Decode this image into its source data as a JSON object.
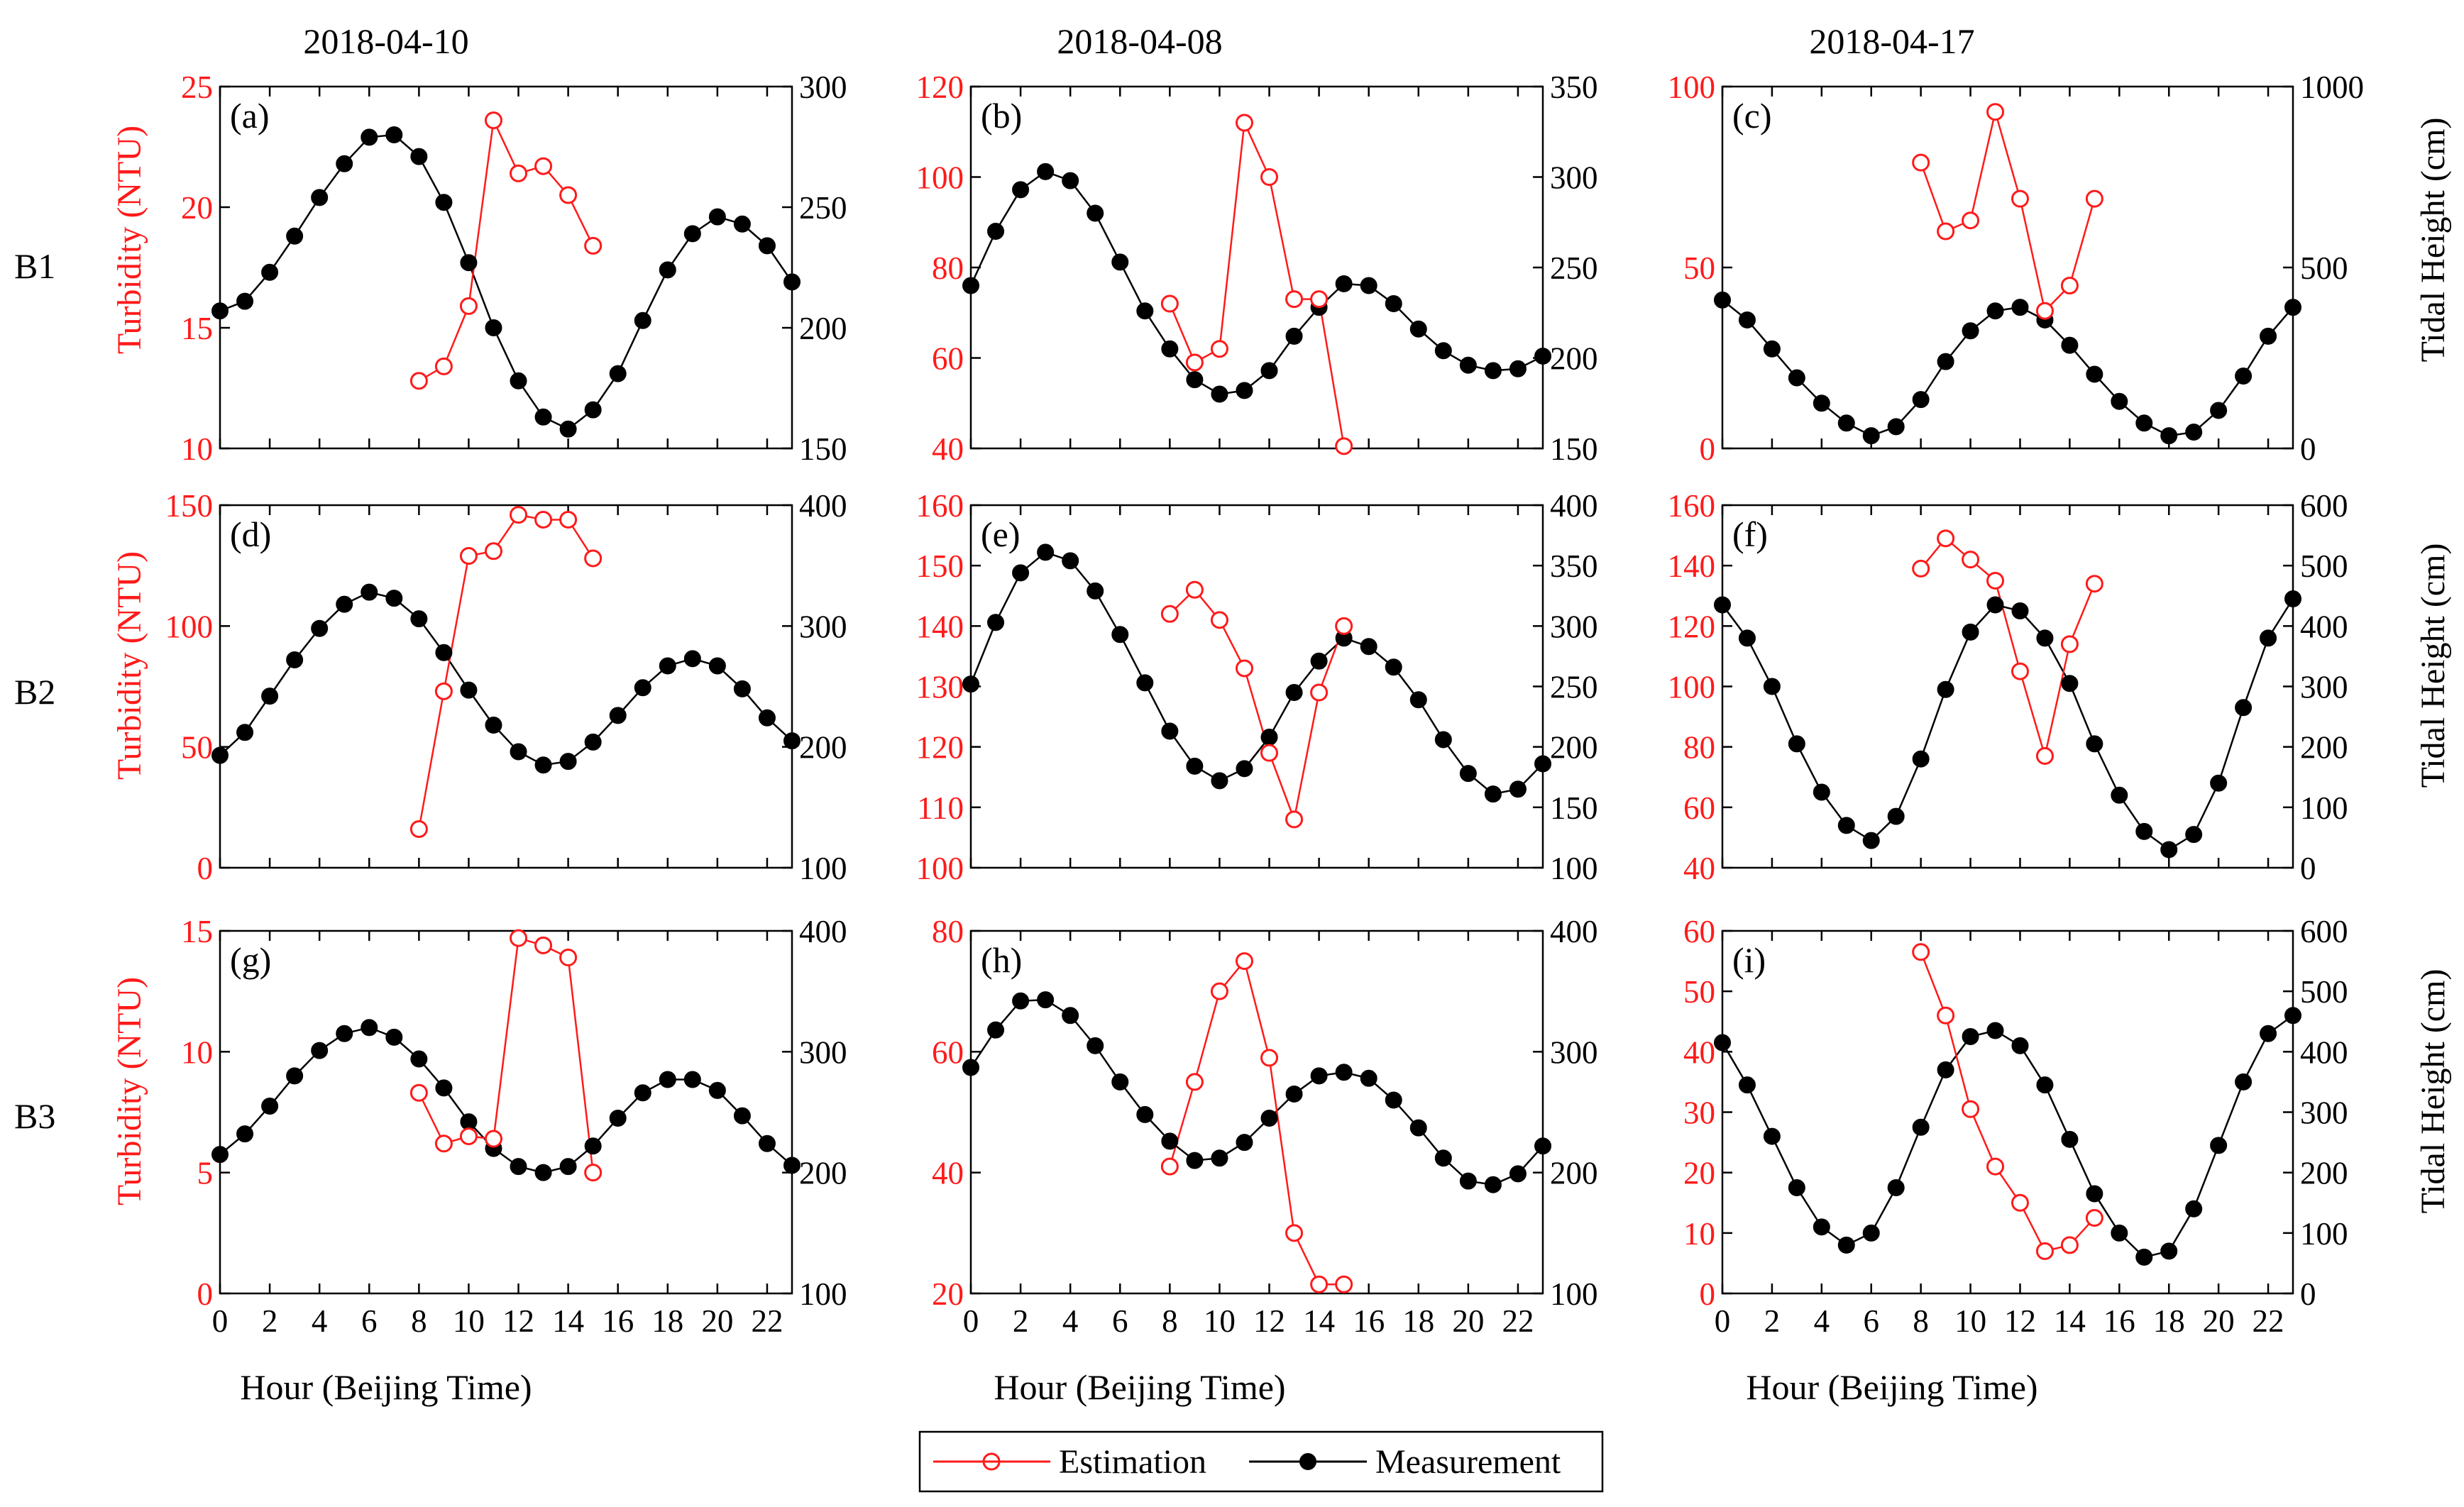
{
  "figure": {
    "x_label": "Hour (Beijing Time)",
    "left_axis_label": "Turbidity (NTU)",
    "right_axis_label": "Tidal Height (cm)",
    "column_titles": [
      "2018-04-10",
      "2018-04-08",
      "2018-04-17"
    ],
    "row_labels": [
      "B1",
      "B2",
      "B3"
    ],
    "legend": {
      "estimation": "Estimation",
      "measurement": "Measurement"
    },
    "colors": {
      "estimation": "#ff1a1a",
      "measurement": "#000000"
    }
  },
  "chart_data": [
    {
      "type": "line",
      "panel": "(a)",
      "row": 0,
      "col": 0,
      "title": "2018-04-10",
      "x_range": [
        0,
        23
      ],
      "x_ticks": [
        0,
        2,
        4,
        6,
        8,
        10,
        12,
        14,
        16,
        18,
        20,
        22
      ],
      "y_left": {
        "label": "Turbidity (NTU)",
        "range": [
          10,
          25
        ],
        "ticks": [
          10,
          15,
          20,
          25
        ]
      },
      "y_right": {
        "label": "Tidal Height (cm)",
        "range": [
          150,
          300
        ],
        "ticks": [
          150,
          200,
          250,
          300
        ]
      },
      "series": [
        {
          "name": "Estimation",
          "axis": "left",
          "x": [
            8,
            9,
            10,
            11,
            12,
            13,
            14,
            15
          ],
          "y": [
            12.8,
            13.4,
            15.9,
            23.6,
            21.4,
            21.7,
            20.5,
            18.4
          ]
        },
        {
          "name": "Measurement",
          "axis": "right",
          "x": [
            0,
            1,
            2,
            3,
            4,
            5,
            6,
            7,
            8,
            9,
            10,
            11,
            12,
            13,
            14,
            15,
            16,
            17,
            18,
            19,
            20,
            21,
            22,
            23
          ],
          "y": [
            207,
            211,
            223,
            238,
            254,
            268,
            279,
            280,
            271,
            252,
            227,
            200,
            178,
            163,
            158,
            166,
            181,
            203,
            224,
            239,
            246,
            243,
            234,
            219
          ]
        }
      ]
    },
    {
      "type": "line",
      "panel": "(b)",
      "row": 0,
      "col": 1,
      "title": "2018-04-08",
      "x_range": [
        0,
        23
      ],
      "x_ticks": [
        0,
        2,
        4,
        6,
        8,
        10,
        12,
        14,
        16,
        18,
        20,
        22
      ],
      "y_left": {
        "label": "Turbidity (NTU)",
        "range": [
          40,
          120
        ],
        "ticks": [
          40,
          60,
          80,
          100,
          120
        ]
      },
      "y_right": {
        "label": "Tidal Height (cm)",
        "range": [
          150,
          350
        ],
        "ticks": [
          150,
          200,
          250,
          300,
          350
        ]
      },
      "series": [
        {
          "name": "Estimation",
          "axis": "left",
          "x": [
            8,
            9,
            10,
            11,
            12,
            13,
            14,
            15
          ],
          "y": [
            72,
            59,
            62,
            112,
            100,
            73,
            73,
            40.5
          ]
        },
        {
          "name": "Measurement",
          "axis": "right",
          "x": [
            0,
            1,
            2,
            3,
            4,
            5,
            6,
            7,
            8,
            9,
            10,
            11,
            12,
            13,
            14,
            15,
            16,
            17,
            18,
            19,
            20,
            21,
            22,
            23
          ],
          "y": [
            240,
            270,
            293,
            303,
            298,
            280,
            253,
            226,
            205,
            188,
            180,
            182,
            193,
            212,
            228,
            241,
            240,
            230,
            216,
            204,
            196,
            193,
            194,
            201
          ]
        }
      ]
    },
    {
      "type": "line",
      "panel": "(c)",
      "row": 0,
      "col": 2,
      "title": "2018-04-17",
      "x_range": [
        0,
        23
      ],
      "x_ticks": [
        0,
        2,
        4,
        6,
        8,
        10,
        12,
        14,
        16,
        18,
        20,
        22
      ],
      "y_left": {
        "label": "Turbidity (NTU)",
        "range": [
          0,
          100
        ],
        "ticks": [
          0,
          50,
          100
        ]
      },
      "y_right": {
        "label": "Tidal Height (cm)",
        "range": [
          0,
          1000
        ],
        "ticks": [
          0,
          500,
          1000
        ]
      },
      "series": [
        {
          "name": "Estimation",
          "axis": "left",
          "x": [
            8,
            9,
            10,
            11,
            12,
            13,
            14,
            15
          ],
          "y": [
            79,
            60,
            63,
            93,
            69,
            38,
            45,
            69
          ]
        },
        {
          "name": "Measurement",
          "axis": "right",
          "x": [
            0,
            1,
            2,
            3,
            4,
            5,
            6,
            7,
            8,
            9,
            10,
            11,
            12,
            13,
            14,
            15,
            16,
            17,
            18,
            19,
            20,
            21,
            22,
            23
          ],
          "y": [
            410,
            355,
            275,
            195,
            125,
            70,
            35,
            60,
            135,
            240,
            325,
            380,
            390,
            355,
            285,
            205,
            130,
            70,
            35,
            45,
            105,
            200,
            310,
            390
          ]
        }
      ]
    },
    {
      "type": "line",
      "panel": "(d)",
      "row": 1,
      "col": 0,
      "title": "",
      "x_range": [
        0,
        23
      ],
      "x_ticks": [
        0,
        2,
        4,
        6,
        8,
        10,
        12,
        14,
        16,
        18,
        20,
        22
      ],
      "y_left": {
        "label": "Turbidity (NTU)",
        "range": [
          0,
          150
        ],
        "ticks": [
          0,
          50,
          100,
          150
        ]
      },
      "y_right": {
        "label": "Tidal Height (cm)",
        "range": [
          100,
          400
        ],
        "ticks": [
          100,
          200,
          300,
          400
        ]
      },
      "series": [
        {
          "name": "Estimation",
          "axis": "left",
          "x": [
            8,
            9,
            10,
            11,
            12,
            13,
            14,
            15
          ],
          "y": [
            16,
            73,
            129,
            131,
            146,
            144,
            144,
            128
          ]
        },
        {
          "name": "Measurement",
          "axis": "right",
          "x": [
            0,
            1,
            2,
            3,
            4,
            5,
            6,
            7,
            8,
            9,
            10,
            11,
            12,
            13,
            14,
            15,
            16,
            17,
            18,
            19,
            20,
            21,
            22,
            23
          ],
          "y": [
            193,
            212,
            242,
            272,
            298,
            318,
            328,
            323,
            306,
            278,
            247,
            218,
            196,
            185,
            188,
            204,
            226,
            249,
            267,
            273,
            267,
            248,
            224,
            205
          ]
        }
      ]
    },
    {
      "type": "line",
      "panel": "(e)",
      "row": 1,
      "col": 1,
      "title": "",
      "x_range": [
        0,
        23
      ],
      "x_ticks": [
        0,
        2,
        4,
        6,
        8,
        10,
        12,
        14,
        16,
        18,
        20,
        22
      ],
      "y_left": {
        "label": "Turbidity (NTU)",
        "range": [
          100,
          160
        ],
        "ticks": [
          100,
          110,
          120,
          130,
          140,
          150,
          160
        ]
      },
      "y_right": {
        "label": "Tidal Height (cm)",
        "range": [
          100,
          400
        ],
        "ticks": [
          100,
          150,
          200,
          250,
          300,
          350,
          400
        ]
      },
      "series": [
        {
          "name": "Estimation",
          "axis": "left",
          "x": [
            8,
            9,
            10,
            11,
            12,
            13,
            14,
            15
          ],
          "y": [
            142,
            146,
            141,
            133,
            119,
            108,
            129,
            140
          ]
        },
        {
          "name": "Measurement",
          "axis": "right",
          "x": [
            0,
            1,
            2,
            3,
            4,
            5,
            6,
            7,
            8,
            9,
            10,
            11,
            12,
            13,
            14,
            15,
            16,
            17,
            18,
            19,
            20,
            21,
            22,
            23
          ],
          "y": [
            252,
            303,
            344,
            361,
            354,
            329,
            293,
            253,
            213,
            184,
            172,
            182,
            208,
            245,
            271,
            290,
            283,
            266,
            239,
            206,
            178,
            161,
            165,
            186
          ]
        }
      ]
    },
    {
      "type": "line",
      "panel": "(f)",
      "row": 1,
      "col": 2,
      "title": "",
      "x_range": [
        0,
        23
      ],
      "x_ticks": [
        0,
        2,
        4,
        6,
        8,
        10,
        12,
        14,
        16,
        18,
        20,
        22
      ],
      "y_left": {
        "label": "Turbidity (NTU)",
        "range": [
          40,
          160
        ],
        "ticks": [
          40,
          60,
          80,
          100,
          120,
          140,
          160
        ]
      },
      "y_right": {
        "label": "Tidal Height (cm)",
        "range": [
          0,
          600
        ],
        "ticks": [
          0,
          100,
          200,
          300,
          400,
          500,
          600
        ]
      },
      "series": [
        {
          "name": "Estimation",
          "axis": "left",
          "x": [
            8,
            9,
            10,
            11,
            12,
            13,
            14,
            15
          ],
          "y": [
            139,
            149,
            142,
            135,
            105,
            77,
            114,
            134
          ]
        },
        {
          "name": "Measurement",
          "axis": "right",
          "x": [
            0,
            1,
            2,
            3,
            4,
            5,
            6,
            7,
            8,
            9,
            10,
            11,
            12,
            13,
            14,
            15,
            16,
            17,
            18,
            19,
            20,
            21,
            22,
            23
          ],
          "y": [
            435,
            380,
            300,
            205,
            125,
            70,
            45,
            85,
            180,
            295,
            390,
            435,
            425,
            380,
            305,
            205,
            120,
            60,
            30,
            55,
            140,
            265,
            380,
            445
          ]
        }
      ]
    },
    {
      "type": "line",
      "panel": "(g)",
      "row": 2,
      "col": 0,
      "title": "",
      "x_range": [
        0,
        23
      ],
      "x_ticks": [
        0,
        2,
        4,
        6,
        8,
        10,
        12,
        14,
        16,
        18,
        20,
        22
      ],
      "y_left": {
        "label": "Turbidity (NTU)",
        "range": [
          0,
          15
        ],
        "ticks": [
          0,
          5,
          10,
          15
        ]
      },
      "y_right": {
        "label": "Tidal Height (cm)",
        "range": [
          100,
          400
        ],
        "ticks": [
          100,
          200,
          300,
          400
        ]
      },
      "series": [
        {
          "name": "Estimation",
          "axis": "left",
          "x": [
            8,
            9,
            10,
            11,
            12,
            13,
            14,
            15
          ],
          "y": [
            8.3,
            6.2,
            6.5,
            6.4,
            14.7,
            14.4,
            13.9,
            5
          ]
        },
        {
          "name": "Measurement",
          "axis": "right",
          "x": [
            0,
            1,
            2,
            3,
            4,
            5,
            6,
            7,
            8,
            9,
            10,
            11,
            12,
            13,
            14,
            15,
            16,
            17,
            18,
            19,
            20,
            21,
            22,
            23
          ],
          "y": [
            215,
            232,
            255,
            280,
            301,
            315,
            320,
            312,
            294,
            270,
            242,
            220,
            205,
            200,
            205,
            222,
            245,
            266,
            277,
            277,
            268,
            247,
            224,
            206
          ]
        }
      ]
    },
    {
      "type": "line",
      "panel": "(h)",
      "row": 2,
      "col": 1,
      "title": "",
      "x_range": [
        0,
        23
      ],
      "x_ticks": [
        0,
        2,
        4,
        6,
        8,
        10,
        12,
        14,
        16,
        18,
        20,
        22
      ],
      "y_left": {
        "label": "Turbidity (NTU)",
        "range": [
          20,
          80
        ],
        "ticks": [
          20,
          40,
          60,
          80
        ]
      },
      "y_right": {
        "label": "Tidal Height (cm)",
        "range": [
          100,
          400
        ],
        "ticks": [
          100,
          200,
          300,
          400
        ]
      },
      "series": [
        {
          "name": "Estimation",
          "axis": "left",
          "x": [
            8,
            9,
            10,
            11,
            12,
            13,
            14,
            15
          ],
          "y": [
            41,
            55,
            70,
            75,
            59,
            30,
            21.5,
            21.5
          ]
        },
        {
          "name": "Measurement",
          "axis": "right",
          "x": [
            0,
            1,
            2,
            3,
            4,
            5,
            6,
            7,
            8,
            9,
            10,
            11,
            12,
            13,
            14,
            15,
            16,
            17,
            18,
            19,
            20,
            21,
            22,
            23
          ],
          "y": [
            287,
            318,
            342,
            343,
            330,
            305,
            275,
            248,
            226,
            210,
            212,
            225,
            245,
            265,
            280,
            283,
            278,
            260,
            237,
            212,
            193,
            190,
            199,
            222
          ]
        }
      ]
    },
    {
      "type": "line",
      "panel": "(i)",
      "row": 2,
      "col": 2,
      "title": "",
      "x_range": [
        0,
        23
      ],
      "x_ticks": [
        0,
        2,
        4,
        6,
        8,
        10,
        12,
        14,
        16,
        18,
        20,
        22
      ],
      "y_left": {
        "label": "Turbidity (NTU)",
        "range": [
          0,
          60
        ],
        "ticks": [
          0,
          10,
          20,
          30,
          40,
          50,
          60
        ]
      },
      "y_right": {
        "label": "Tidal Height (cm)",
        "range": [
          0,
          600
        ],
        "ticks": [
          0,
          100,
          200,
          300,
          400,
          500,
          600
        ]
      },
      "series": [
        {
          "name": "Estimation",
          "axis": "left",
          "x": [
            8,
            9,
            10,
            11,
            12,
            13,
            14,
            15
          ],
          "y": [
            56.5,
            46,
            30.5,
            21,
            15,
            7,
            8,
            12.5
          ]
        },
        {
          "name": "Measurement",
          "axis": "right",
          "x": [
            0,
            1,
            2,
            3,
            4,
            5,
            6,
            7,
            8,
            9,
            10,
            11,
            12,
            13,
            14,
            15,
            16,
            17,
            18,
            19,
            20,
            21,
            22,
            23
          ],
          "y": [
            415,
            345,
            260,
            175,
            110,
            80,
            100,
            175,
            275,
            370,
            425,
            435,
            410,
            345,
            255,
            165,
            100,
            60,
            70,
            140,
            245,
            350,
            430,
            460
          ]
        }
      ]
    }
  ]
}
